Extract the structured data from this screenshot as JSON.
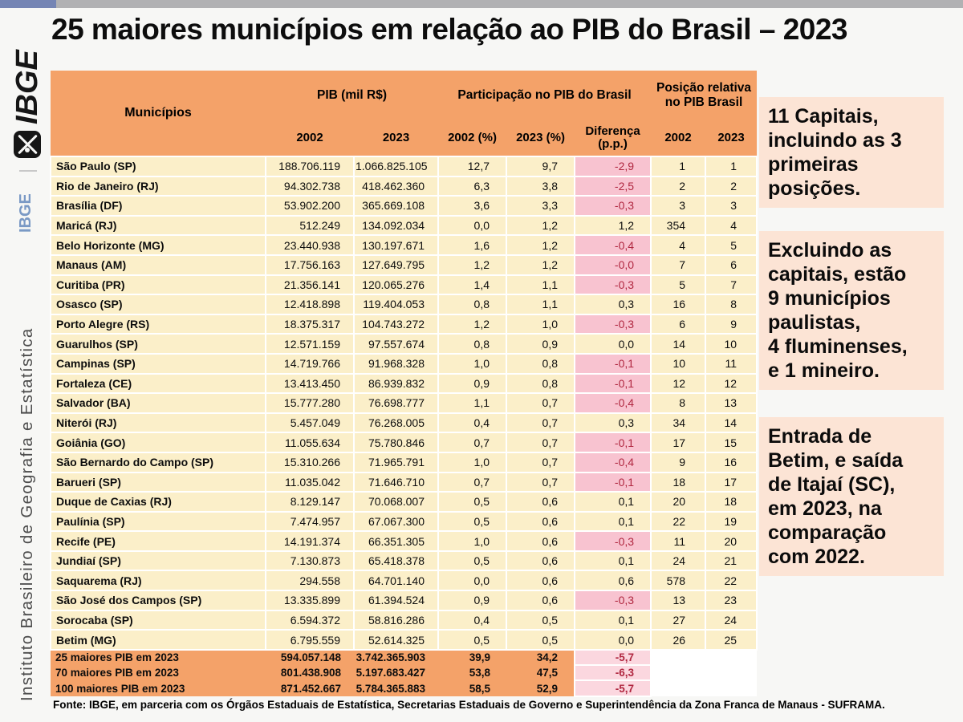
{
  "page": {
    "title": "25 maiores municípios em relação ao PIB do Brasil – 2023",
    "source": "Fonte: IBGE, em parceria com os Órgãos Estaduais de Estatística, Secretarias Estaduais de Governo e Superintendência da Zona Franca de Manaus - SUFRAMA."
  },
  "sidebar": {
    "logo": "IBGE",
    "brand_short": "IBGE",
    "brand_long": "Instituto Brasileiro de Geografia e Estatística"
  },
  "table": {
    "headers": {
      "municipios": "Municípios",
      "pib_group": "PIB (mil R$)",
      "participacao_group": "Participação no PIB do Brasil",
      "posicao_group": "Posição relativa no PIB Brasil",
      "pib_2002": "2002",
      "pib_2023": "2023",
      "pct_2002": "2002 (%)",
      "pct_2023": "2023 (%)",
      "diferenca_line1": "Diferença",
      "diferenca_line2": "(p.p.)",
      "pos_2002": "2002",
      "pos_2023": "2023"
    },
    "rows": [
      {
        "name": "São Paulo (SP)",
        "pib_2002": "188.706.119",
        "pib_2023": "1.066.825.105",
        "pct_2002": "12,7",
        "pct_2023": "9,7",
        "diff": "-2,9",
        "pos_2002": "1",
        "pos_2023": "1"
      },
      {
        "name": "Rio de Janeiro (RJ)",
        "pib_2002": "94.302.738",
        "pib_2023": "418.462.360",
        "pct_2002": "6,3",
        "pct_2023": "3,8",
        "diff": "-2,5",
        "pos_2002": "2",
        "pos_2023": "2"
      },
      {
        "name": "Brasília (DF)",
        "pib_2002": "53.902.200",
        "pib_2023": "365.669.108",
        "pct_2002": "3,6",
        "pct_2023": "3,3",
        "diff": "-0,3",
        "pos_2002": "3",
        "pos_2023": "3"
      },
      {
        "name": "Maricá (RJ)",
        "pib_2002": "512.249",
        "pib_2023": "134.092.034",
        "pct_2002": "0,0",
        "pct_2023": "1,2",
        "diff": "1,2",
        "pos_2002": "354",
        "pos_2023": "4"
      },
      {
        "name": "Belo Horizonte (MG)",
        "pib_2002": "23.440.938",
        "pib_2023": "130.197.671",
        "pct_2002": "1,6",
        "pct_2023": "1,2",
        "diff": "-0,4",
        "pos_2002": "4",
        "pos_2023": "5"
      },
      {
        "name": "Manaus (AM)",
        "pib_2002": "17.756.163",
        "pib_2023": "127.649.795",
        "pct_2002": "1,2",
        "pct_2023": "1,2",
        "diff": "-0,0",
        "pos_2002": "7",
        "pos_2023": "6"
      },
      {
        "name": "Curitiba (PR)",
        "pib_2002": "21.356.141",
        "pib_2023": "120.065.276",
        "pct_2002": "1,4",
        "pct_2023": "1,1",
        "diff": "-0,3",
        "pos_2002": "5",
        "pos_2023": "7"
      },
      {
        "name": "Osasco (SP)",
        "pib_2002": "12.418.898",
        "pib_2023": "119.404.053",
        "pct_2002": "0,8",
        "pct_2023": "1,1",
        "diff": "0,3",
        "pos_2002": "16",
        "pos_2023": "8"
      },
      {
        "name": "Porto Alegre (RS)",
        "pib_2002": "18.375.317",
        "pib_2023": "104.743.272",
        "pct_2002": "1,2",
        "pct_2023": "1,0",
        "diff": "-0,3",
        "pos_2002": "6",
        "pos_2023": "9"
      },
      {
        "name": "Guarulhos (SP)",
        "pib_2002": "12.571.159",
        "pib_2023": "97.557.674",
        "pct_2002": "0,8",
        "pct_2023": "0,9",
        "diff": "0,0",
        "pos_2002": "14",
        "pos_2023": "10"
      },
      {
        "name": "Campinas (SP)",
        "pib_2002": "14.719.766",
        "pib_2023": "91.968.328",
        "pct_2002": "1,0",
        "pct_2023": "0,8",
        "diff": "-0,1",
        "pos_2002": "10",
        "pos_2023": "11"
      },
      {
        "name": "Fortaleza (CE)",
        "pib_2002": "13.413.450",
        "pib_2023": "86.939.832",
        "pct_2002": "0,9",
        "pct_2023": "0,8",
        "diff": "-0,1",
        "pos_2002": "12",
        "pos_2023": "12"
      },
      {
        "name": "Salvador (BA)",
        "pib_2002": "15.777.280",
        "pib_2023": "76.698.777",
        "pct_2002": "1,1",
        "pct_2023": "0,7",
        "diff": "-0,4",
        "pos_2002": "8",
        "pos_2023": "13"
      },
      {
        "name": "Niterói (RJ)",
        "pib_2002": "5.457.049",
        "pib_2023": "76.268.005",
        "pct_2002": "0,4",
        "pct_2023": "0,7",
        "diff": "0,3",
        "pos_2002": "34",
        "pos_2023": "14"
      },
      {
        "name": "Goiânia (GO)",
        "pib_2002": "11.055.634",
        "pib_2023": "75.780.846",
        "pct_2002": "0,7",
        "pct_2023": "0,7",
        "diff": "-0,1",
        "pos_2002": "17",
        "pos_2023": "15"
      },
      {
        "name": "São Bernardo do Campo (SP)",
        "pib_2002": "15.310.266",
        "pib_2023": "71.965.791",
        "pct_2002": "1,0",
        "pct_2023": "0,7",
        "diff": "-0,4",
        "pos_2002": "9",
        "pos_2023": "16"
      },
      {
        "name": "Barueri (SP)",
        "pib_2002": "11.035.042",
        "pib_2023": "71.646.710",
        "pct_2002": "0,7",
        "pct_2023": "0,7",
        "diff": "-0,1",
        "pos_2002": "18",
        "pos_2023": "17"
      },
      {
        "name": "Duque de Caxias (RJ)",
        "pib_2002": "8.129.147",
        "pib_2023": "70.068.007",
        "pct_2002": "0,5",
        "pct_2023": "0,6",
        "diff": "0,1",
        "pos_2002": "20",
        "pos_2023": "18"
      },
      {
        "name": "Paulínia (SP)",
        "pib_2002": "7.474.957",
        "pib_2023": "67.067.300",
        "pct_2002": "0,5",
        "pct_2023": "0,6",
        "diff": "0,1",
        "pos_2002": "22",
        "pos_2023": "19"
      },
      {
        "name": "Recife (PE)",
        "pib_2002": "14.191.374",
        "pib_2023": "66.351.305",
        "pct_2002": "1,0",
        "pct_2023": "0,6",
        "diff": "-0,3",
        "pos_2002": "11",
        "pos_2023": "20"
      },
      {
        "name": "Jundiaí (SP)",
        "pib_2002": "7.130.873",
        "pib_2023": "65.418.378",
        "pct_2002": "0,5",
        "pct_2023": "0,6",
        "diff": "0,1",
        "pos_2002": "24",
        "pos_2023": "21"
      },
      {
        "name": "Saquarema (RJ)",
        "pib_2002": "294.558",
        "pib_2023": "64.701.140",
        "pct_2002": "0,0",
        "pct_2023": "0,6",
        "diff": "0,6",
        "pos_2002": "578",
        "pos_2023": "22"
      },
      {
        "name": "São José dos Campos (SP)",
        "pib_2002": "13.335.899",
        "pib_2023": "61.394.524",
        "pct_2002": "0,9",
        "pct_2023": "0,6",
        "diff": "-0,3",
        "pos_2002": "13",
        "pos_2023": "23"
      },
      {
        "name": "Sorocaba (SP)",
        "pib_2002": "6.594.372",
        "pib_2023": "58.816.286",
        "pct_2002": "0,4",
        "pct_2023": "0,5",
        "diff": "0,1",
        "pos_2002": "27",
        "pos_2023": "24"
      },
      {
        "name": "Betim (MG)",
        "pib_2002": "6.795.559",
        "pib_2023": "52.614.325",
        "pct_2002": "0,5",
        "pct_2023": "0,5",
        "diff": "0,0",
        "pos_2002": "26",
        "pos_2023": "25"
      }
    ],
    "summary_rows": [
      {
        "label": "25 maiores PIB em 2023",
        "pib_2002": "594.057.148",
        "pib_2023": "3.742.365.903",
        "pct_2002": "39,9",
        "pct_2023": "34,2",
        "diff": "-5,7"
      },
      {
        "label": "70 maiores PIB em 2023",
        "pib_2002": "801.438.908",
        "pib_2023": "5.197.683.427",
        "pct_2002": "53,8",
        "pct_2023": "47,5",
        "diff": "-6,3"
      },
      {
        "label": "100 maiores PIB em 2023",
        "pib_2002": "871.452.667",
        "pib_2023": "5.784.365.883",
        "pct_2002": "58,5",
        "pct_2023": "52,9",
        "diff": "-5,7"
      }
    ]
  },
  "annotations": [
    {
      "text": "11 Capitais,\nincluindo as 3\nprimeiras\nposições."
    },
    {
      "text": "Excluindo as\ncapitais, estão\n9 municípios\npaulistas,\n4 fluminenses,\ne 1 mineiro."
    },
    {
      "text": "Entrada de\nBetim, e saída\nde Itajaí (SC),\nem 2023, na\ncomparação\ncom 2022."
    }
  ],
  "colors": {
    "header_orange": "#F4A269",
    "row_cream": "#FBEFC9",
    "neg_fill": "#F8C3D0",
    "neg_fill_light": "#FBD7DF",
    "neg_text": "#B02740",
    "annotation_bg": "#FCE4D5",
    "topbar_gray": "#B1B1B3",
    "topbar_blue": "#7585B4",
    "brand_blue": "#7A99C5",
    "slide_bg": "#F7F7F5"
  }
}
